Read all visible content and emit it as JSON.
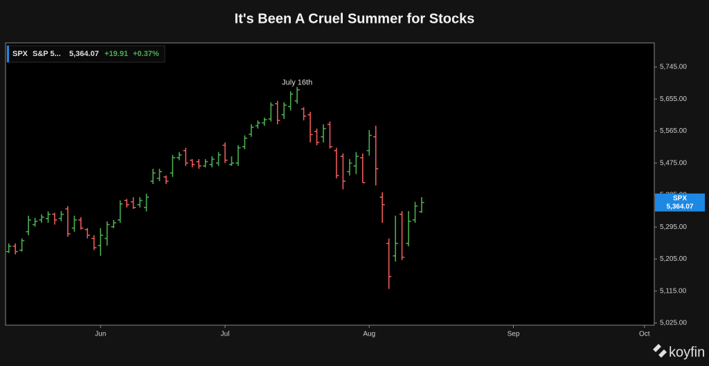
{
  "chart_data": {
    "type": "ohlc",
    "title": "It's Been A Cruel Summer for Stocks",
    "legend": {
      "symbol": "SPX",
      "name": "S&P 5...",
      "price": "5,364.07",
      "change": "+19.91",
      "change_pct": "+0.37%"
    },
    "price_tag": {
      "symbol": "SPX",
      "label": "5,364.07"
    },
    "annotation": {
      "text": "July 16th",
      "index": 44
    },
    "brand": "koyfin",
    "up_color": "#4caf50",
    "down_color": "#f05a5a",
    "ylim": [
      5019,
      5813
    ],
    "yticks": [
      {
        "value": 5025,
        "label": "5,025.00"
      },
      {
        "value": 5115,
        "label": "5,115.00"
      },
      {
        "value": 5205,
        "label": "5,205.00"
      },
      {
        "value": 5295,
        "label": "5,295.00"
      },
      {
        "value": 5385,
        "label": "5,385.00"
      },
      {
        "value": 5475,
        "label": "5,475.00"
      },
      {
        "value": 5565,
        "label": "5,565.00"
      },
      {
        "value": 5655,
        "label": "5,655.00"
      },
      {
        "value": 5745,
        "label": "5,745.00"
      }
    ],
    "categories": [
      null,
      null,
      null,
      null,
      null,
      null,
      null,
      null,
      null,
      null,
      null,
      null,
      null,
      null,
      "Jun",
      null,
      null,
      null,
      null,
      null,
      null,
      null,
      null,
      null,
      null,
      null,
      null,
      null,
      null,
      null,
      null,
      null,
      null,
      "Jul",
      null,
      null,
      null,
      null,
      null,
      null,
      null,
      null,
      null,
      null,
      null,
      null,
      null,
      null,
      null,
      null,
      null,
      null,
      null,
      null,
      null,
      "Aug",
      null,
      null,
      null,
      null,
      null,
      null,
      null,
      null,
      null,
      null,
      null,
      null,
      null,
      null,
      null,
      null,
      null,
      null,
      null,
      null,
      null,
      "Sep",
      null,
      null,
      null,
      null,
      null,
      null,
      null,
      null,
      null,
      null,
      null,
      null,
      null,
      null,
      null,
      null,
      null,
      null,
      null,
      "Oct",
      null
    ],
    "open": [
      5226,
      5241,
      5230,
      5282,
      5302,
      5315,
      5319,
      5331,
      5319,
      5346,
      5292,
      5315,
      5288,
      5263,
      5243,
      5263,
      5296,
      5315,
      5370,
      5366,
      5358,
      5350,
      5424,
      5432,
      5436,
      5447,
      5490,
      5510,
      5483,
      5479,
      5467,
      5471,
      5475,
      5525,
      5471,
      5475,
      5521,
      5556,
      5580,
      5588,
      5599,
      5642,
      5611,
      5634,
      5650,
      5627,
      5611,
      5564,
      5549,
      5584,
      5510,
      5494,
      5451,
      5467,
      5490,
      5510,
      5549,
      5379,
      5249,
      5214,
      5331,
      5249,
      5315,
      5338,
      null,
      null,
      null,
      null,
      null,
      null,
      null,
      null,
      null,
      null,
      null,
      null,
      null,
      null,
      null,
      null,
      null,
      null,
      null,
      null,
      null,
      null,
      null,
      null,
      null,
      null,
      null,
      null,
      null,
      null,
      null,
      null,
      null,
      null,
      null
    ],
    "high": [
      5249,
      5249,
      5263,
      5327,
      5321,
      5331,
      5339,
      5335,
      5340,
      5354,
      5327,
      5323,
      5292,
      5272,
      5292,
      5311,
      5315,
      5370,
      5374,
      5379,
      5379,
      5389,
      5459,
      5459,
      5440,
      5498,
      5506,
      5518,
      5486,
      5486,
      5486,
      5494,
      5506,
      5533,
      5494,
      5525,
      5553,
      5584,
      5595,
      5603,
      5646,
      5650,
      5646,
      5677,
      5689,
      5632,
      5619,
      5572,
      5584,
      5592,
      5518,
      5502,
      5486,
      5506,
      5502,
      5568,
      5580,
      5393,
      5263,
      5327,
      5340,
      5340,
      5366,
      5379,
      null,
      null,
      null,
      null,
      null,
      null,
      null,
      null,
      null,
      null,
      null,
      null,
      null,
      null,
      null,
      null,
      null,
      null,
      null,
      null,
      null,
      null,
      null,
      null,
      null,
      null,
      null,
      null,
      null,
      null,
      null,
      null,
      null,
      null,
      null
    ],
    "low": [
      5222,
      5218,
      5226,
      5272,
      5296,
      5307,
      5307,
      5302,
      5311,
      5268,
      5282,
      5288,
      5263,
      5230,
      5214,
      5243,
      5292,
      5307,
      5350,
      5346,
      5350,
      5339,
      5416,
      5424,
      5416,
      5436,
      5483,
      5467,
      5463,
      5459,
      5463,
      5463,
      5467,
      5475,
      5467,
      5467,
      5514,
      5549,
      5572,
      5580,
      5592,
      5584,
      5599,
      5623,
      5642,
      5595,
      5533,
      5525,
      5533,
      5516,
      5432,
      5401,
      5440,
      5444,
      5420,
      5496,
      5412,
      5307,
      5121,
      5198,
      5202,
      5241,
      5307,
      5335,
      null,
      null,
      null,
      null,
      null,
      null,
      null,
      null,
      null,
      null,
      null,
      null,
      null,
      null,
      null,
      null,
      null,
      null,
      null,
      null,
      null,
      null,
      null,
      null,
      null,
      null,
      null,
      null,
      null,
      null,
      null,
      null,
      null,
      null,
      null
    ],
    "close": [
      5241,
      5226,
      5257,
      5315,
      5311,
      5323,
      5331,
      5315,
      5331,
      5276,
      5315,
      5292,
      5272,
      5237,
      5272,
      5302,
      5307,
      5360,
      5358,
      5350,
      5370,
      5379,
      5447,
      5451,
      5424,
      5490,
      5498,
      5475,
      5471,
      5467,
      5479,
      5486,
      5498,
      5483,
      5475,
      5518,
      5545,
      5576,
      5588,
      5597,
      5638,
      5595,
      5638,
      5669,
      5681,
      5607,
      5555,
      5533,
      5572,
      5521,
      5440,
      5424,
      5475,
      5494,
      5420,
      5553,
      5459,
      5358,
      5156,
      5249,
      5210,
      5311,
      5354,
      5364.07,
      null,
      null,
      null,
      null,
      null,
      null,
      null,
      null,
      null,
      null,
      null,
      null,
      null,
      null,
      null,
      null,
      null,
      null,
      null,
      null,
      null,
      null,
      null,
      null,
      null,
      null,
      null,
      null,
      null,
      null,
      null,
      null,
      null,
      null,
      null
    ]
  }
}
